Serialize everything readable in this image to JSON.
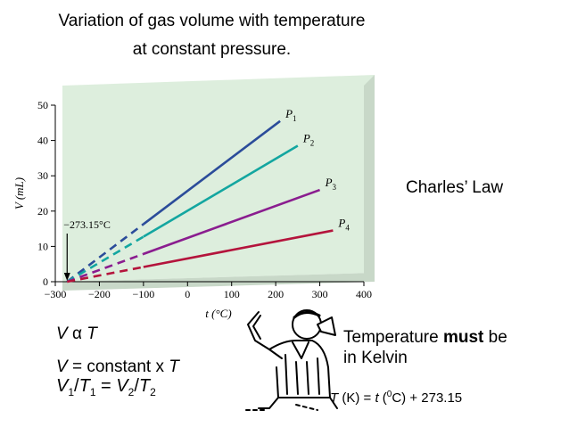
{
  "title_line1": "Variation of gas volume with temperature",
  "title_line2": "at constant pressure.",
  "charles_law": "Charles’ Law",
  "relations": {
    "proportional": {
      "v": "V",
      "alpha": "α",
      "t": "T"
    },
    "constant": {
      "v": "V",
      "middle": " = constant x ",
      "t": "T"
    },
    "ratio": {
      "v1": "V",
      "s1": "1",
      "t1": "T",
      "s2": "1",
      "eq": " = ",
      "v2": "V",
      "s3": "2",
      "t2": "T",
      "s4": "2"
    }
  },
  "note": {
    "pre": "Temperature ",
    "bold": "must",
    "post": " be",
    "line2": "in Kelvin"
  },
  "formula": {
    "t": "T",
    "k": " (K) = ",
    "tsmall": "t",
    "open": " (",
    "zero": "0",
    "close": "C) + 273.15"
  },
  "colors": {
    "panel": "#ddeedd",
    "panel_side": "#c8d8c8",
    "p1": "#2b4c9a",
    "p2": "#13a6a0",
    "p3": "#8a1d8f",
    "p4": "#b4143c"
  },
  "chart_data": {
    "type": "line",
    "xlabel": "t (°C)",
    "ylabel": "V (mL)",
    "xlim": [
      -300,
      400
    ],
    "ylim": [
      0,
      50
    ],
    "xticks": [
      -300,
      -200,
      -100,
      0,
      100,
      200,
      300,
      400
    ],
    "yticks": [
      0,
      10,
      20,
      30,
      40,
      50
    ],
    "annotation": "−273.15°C",
    "extrapolation_start": -273.15,
    "measured_start": -100,
    "series": [
      {
        "name": "P",
        "sub": "1",
        "x_end": 210,
        "y_end": 45.5,
        "color_key": "p1"
      },
      {
        "name": "P",
        "sub": "2",
        "x_end": 250,
        "y_end": 38.5,
        "color_key": "p2"
      },
      {
        "name": "P",
        "sub": "3",
        "x_end": 300,
        "y_end": 26,
        "color_key": "p3"
      },
      {
        "name": "P",
        "sub": "4",
        "x_end": 330,
        "y_end": 14.5,
        "color_key": "p4"
      }
    ]
  }
}
